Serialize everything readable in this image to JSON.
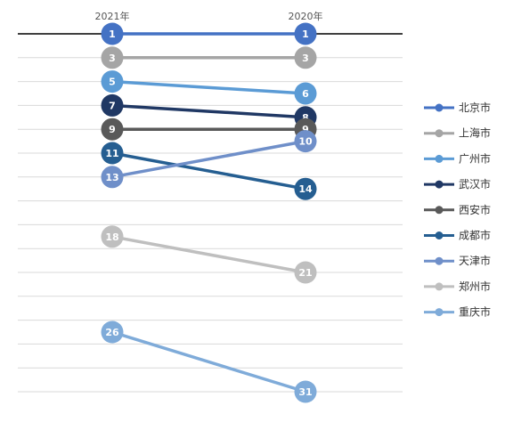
{
  "chart_data": {
    "type": "line",
    "categories": [
      "2021年",
      "2020年"
    ],
    "ylim": [
      1,
      31
    ],
    "y_reversed": true,
    "grid": true,
    "legend_position": "right",
    "series": [
      {
        "name": "北京市",
        "values": [
          1,
          1
        ],
        "color": "#4472C4"
      },
      {
        "name": "上海市",
        "values": [
          3,
          3
        ],
        "color": "#A5A5A5"
      },
      {
        "name": "广州市",
        "values": [
          5,
          6
        ],
        "color": "#5B9BD5"
      },
      {
        "name": "武汉市",
        "values": [
          7,
          8
        ],
        "color": "#203864"
      },
      {
        "name": "西安市",
        "values": [
          9,
          9
        ],
        "color": "#595959"
      },
      {
        "name": "成都市",
        "values": [
          11,
          14
        ],
        "color": "#255E91"
      },
      {
        "name": "天津市",
        "values": [
          13,
          10
        ],
        "color": "#6F8FC9"
      },
      {
        "name": "郑州市",
        "values": [
          18,
          21
        ],
        "color": "#BFBFBF"
      },
      {
        "name": "重庆市",
        "values": [
          26,
          31
        ],
        "color": "#7FABD9"
      }
    ]
  }
}
